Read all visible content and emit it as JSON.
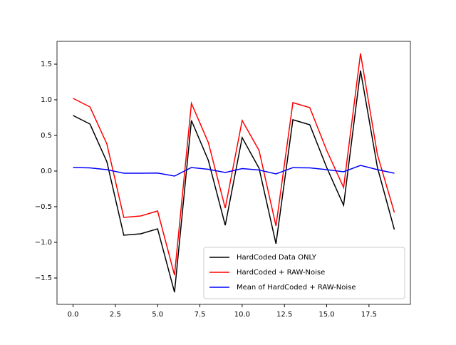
{
  "chart_data": {
    "type": "line",
    "x": [
      0,
      1,
      2,
      3,
      4,
      5,
      6,
      7,
      8,
      9,
      10,
      11,
      12,
      13,
      14,
      15,
      16,
      17,
      18,
      19
    ],
    "series": [
      {
        "name": "HardCoded Data ONLY",
        "color": "#000000",
        "values": [
          0.78,
          0.66,
          0.13,
          -0.9,
          -0.88,
          -0.81,
          -1.7,
          0.71,
          0.15,
          -0.76,
          0.47,
          0.04,
          -1.02,
          0.72,
          0.65,
          0.05,
          -0.48,
          1.41,
          0.05,
          -0.82
        ]
      },
      {
        "name": "HardCoded + RAW-Noise",
        "color": "#ff0000",
        "values": [
          1.02,
          0.9,
          0.38,
          -0.65,
          -0.63,
          -0.56,
          -1.46,
          0.95,
          0.4,
          -0.52,
          0.71,
          0.29,
          -0.77,
          0.96,
          0.89,
          0.29,
          -0.23,
          1.65,
          0.23,
          -0.58
        ]
      },
      {
        "name": "Mean of HardCoded + RAW-Noise",
        "color": "#0000ff",
        "values": [
          0.05,
          0.045,
          0.02,
          -0.03,
          -0.03,
          -0.028,
          -0.07,
          0.05,
          0.025,
          -0.02,
          0.035,
          0.015,
          -0.04,
          0.048,
          0.045,
          0.02,
          -0.01,
          0.08,
          0.02,
          -0.03
        ]
      }
    ],
    "xlim": [
      -0.95,
      19.95
    ],
    "ylim": [
      -1.87,
      1.82
    ],
    "xticks": [
      {
        "value": 0,
        "label": "0.0"
      },
      {
        "value": 2.5,
        "label": "2.5"
      },
      {
        "value": 5,
        "label": "5.0"
      },
      {
        "value": 7.5,
        "label": "7.5"
      },
      {
        "value": 10,
        "label": "10.0"
      },
      {
        "value": 12.5,
        "label": "12.5"
      },
      {
        "value": 15,
        "label": "15.0"
      },
      {
        "value": 17.5,
        "label": "17.5"
      }
    ],
    "yticks": [
      {
        "value": -1.5,
        "label": "−1.5"
      },
      {
        "value": -1,
        "label": "−1.0"
      },
      {
        "value": -0.5,
        "label": "−0.5"
      },
      {
        "value": 0,
        "label": "0.0"
      },
      {
        "value": 0.5,
        "label": "0.5"
      },
      {
        "value": 1,
        "label": "1.0"
      },
      {
        "value": 1.5,
        "label": "1.5"
      }
    ],
    "legend": "lower right"
  }
}
